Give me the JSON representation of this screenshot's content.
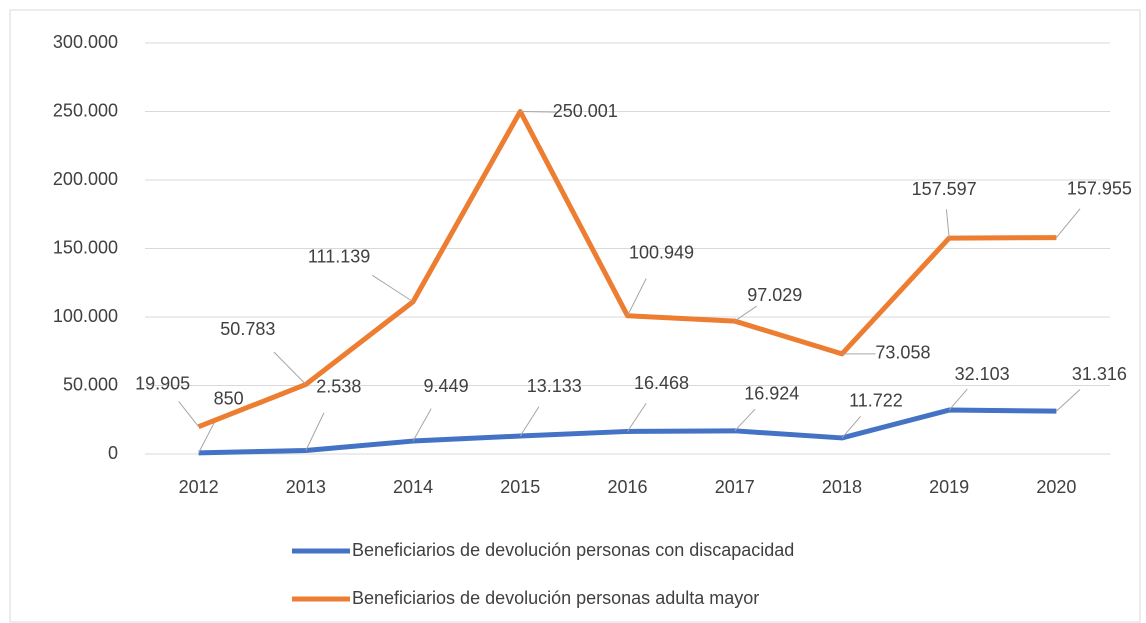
{
  "chart_data": {
    "type": "line",
    "categories": [
      "2012",
      "2013",
      "2014",
      "2015",
      "2016",
      "2017",
      "2018",
      "2019",
      "2020"
    ],
    "series": [
      {
        "name": "Beneficiarios de devolución personas con discapacidad",
        "color": "#4472c4",
        "values": [
          850,
          2538,
          9449,
          13133,
          16468,
          16924,
          11722,
          32103,
          31316
        ],
        "value_labels": [
          "850",
          "2.538",
          "9.449",
          "13.133",
          "16.468",
          "16.924",
          "11.722",
          "32.103",
          "31.316"
        ]
      },
      {
        "name": "Beneficiarios de devolución personas adulta mayor",
        "color": "#ed7d31",
        "values": [
          19905,
          50783,
          111139,
          250001,
          100949,
          97029,
          73058,
          157597,
          157955
        ],
        "value_labels": [
          "19.905",
          "50.783",
          "111.139",
          "250.001",
          "100.949",
          "97.029",
          "73.058",
          "157.597",
          "157.955"
        ]
      }
    ],
    "ylim": [
      0,
      300000
    ],
    "yticks": [
      0,
      {
        "value": 50000,
        "label": "50.000"
      },
      {
        "value": 100000,
        "label": "100.000"
      },
      {
        "value": 150000,
        "label": "150.000"
      },
      {
        "value": 200000,
        "label": "200.000"
      },
      {
        "value": 250000,
        "label": "250.000"
      },
      {
        "value": 300000,
        "label": "300.000"
      }
    ],
    "grid": true,
    "legend": "bottom"
  }
}
